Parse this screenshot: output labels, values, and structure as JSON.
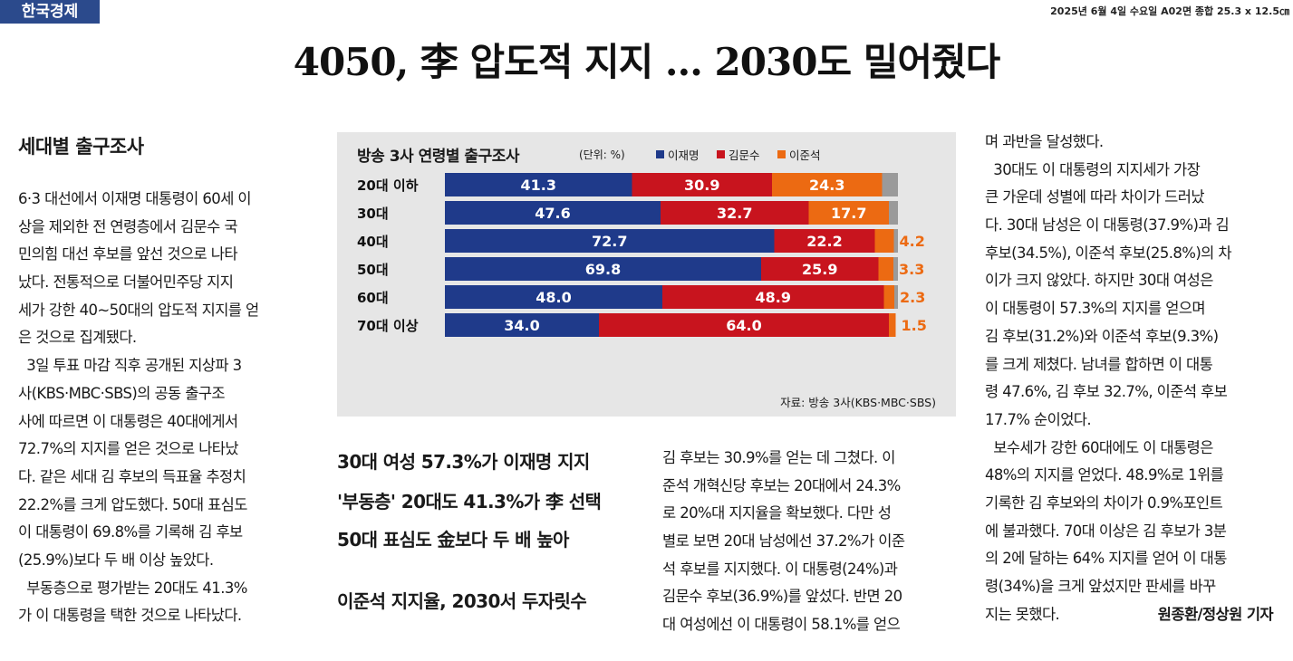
{
  "masthead": {
    "logo": "한국경제",
    "issue_info": "2025년 6월 4일 수요일 A02면 종합 25.3 x 12.5㎝"
  },
  "headline": "4050, 李 압도적 지지 … 2030도 밀어줬다",
  "section_head": "세대별 출구조사",
  "col1": [
    "6·3 대선에서 이재명 대통령이 60세 이",
    "상을 제외한 전 연령층에서 김문수 국",
    "민의힘 대선 후보를 앞선 것으로 나타",
    "났다. 전통적으로 더불어민주당 지지",
    "세가 강한 40~50대의 압도적 지지를 얻",
    "은 것으로 집계됐다.",
    "  3일 투표 마감 직후 공개된 지상파 3",
    "사(KBS·MBC·SBS)의 공동 출구조",
    "사에 따르면 이 대통령은 40대에게서",
    "72.7%의 지지를 얻은 것으로 나타났",
    "다. 같은 세대 김 후보의 득표율 추정치",
    "22.2%를 크게 압도했다. 50대 표심도",
    "이 대통령이 69.8%를 기록해 김 후보",
    "(25.9%)보다 두 배 이상 높았다.",
    "  부동층으로 평가받는 20대도 41.3%",
    "가 이 대통령을 택한 것으로 나타났다."
  ],
  "subheads": [
    "30대 여성 57.3%가 이재명 지지",
    "'부동층' 20대도 41.3%가 李 선택",
    "50대 표심도 金보다 두 배 높아",
    "이준석 지지율, 2030서 두자릿수"
  ],
  "col3": [
    "김 후보는 30.9%를 얻는 데 그쳤다. 이",
    "준석 개혁신당 후보는 20대에서 24.3%",
    "로 20%대 지지율을 확보했다. 다만 성",
    "별로 보면 20대 남성에선 37.2%가 이준",
    "석 후보를 지지했다. 이 대통령(24%)과",
    "김문수 후보(36.9%)를 앞섰다. 반면 20",
    "대 여성에선 이 대통령이 58.1%를 얻으"
  ],
  "col4": [
    "며 과반을 달성했다.",
    "  30대도 이 대통령의 지지세가 가장",
    "큰 가운데 성별에 따라 차이가 드러났",
    "다. 30대 남성은 이 대통령(37.9%)과 김",
    "후보(34.5%), 이준석 후보(25.8%)의 차",
    "이가 크지 않았다. 하지만 30대 여성은",
    "이 대통령이 57.3%의 지지를 얻으며",
    "김 후보(31.2%)와 이준석 후보(9.3%)",
    "를 크게 제쳤다. 남녀를 합하면 이 대통",
    "령 47.6%, 김 후보 32.7%, 이준석 후보",
    "17.7% 순이었다.",
    "  보수세가 강한 60대에도 이 대통령은",
    "48%의 지지를 얻었다. 48.9%로 1위를",
    "기록한 김 후보와의 차이가 0.9%포인트",
    "에 불과했다. 70대 이상은 김 후보가 3분",
    "의 2에 달하는 64% 지지를 얻어 이 대통",
    "령(34%)을 크게 앞섰지만 판세를 바꾸",
    "지는 못했다."
  ],
  "byline": "원종환/정상원 기자",
  "chart_data": {
    "type": "bar",
    "orientation": "horizontal",
    "stacked": true,
    "title": "방송 3사 연령별 출구조사",
    "unit": "(단위: %)",
    "source": "자료: 방송 3사(KBS·MBC·SBS)",
    "categories": [
      "20대 이하",
      "30대",
      "40대",
      "50대",
      "60대",
      "70대 이상"
    ],
    "series": [
      {
        "name": "이재명",
        "color": "#1f3a8a",
        "values": [
          41.3,
          47.6,
          72.7,
          69.8,
          48.0,
          34.0
        ],
        "labels": [
          "41.3",
          "47.6",
          "72.7",
          "69.8",
          "48.0",
          "34.0"
        ]
      },
      {
        "name": "김문수",
        "color": "#c8141e",
        "values": [
          30.9,
          32.7,
          22.2,
          25.9,
          48.9,
          64.0
        ],
        "labels": [
          "30.9",
          "32.7",
          "22.2",
          "25.9",
          "48.9",
          "64.0"
        ]
      },
      {
        "name": "이준석",
        "color": "#ec6a12",
        "values": [
          24.3,
          17.7,
          4.2,
          3.3,
          2.3,
          1.5
        ],
        "labels": [
          "24.3",
          "17.7",
          "4.2",
          "3.3",
          "2.3",
          "1.5"
        ]
      }
    ],
    "remainder_color": "#9a9a9a",
    "xlim": [
      0,
      100
    ],
    "legend": "top"
  }
}
